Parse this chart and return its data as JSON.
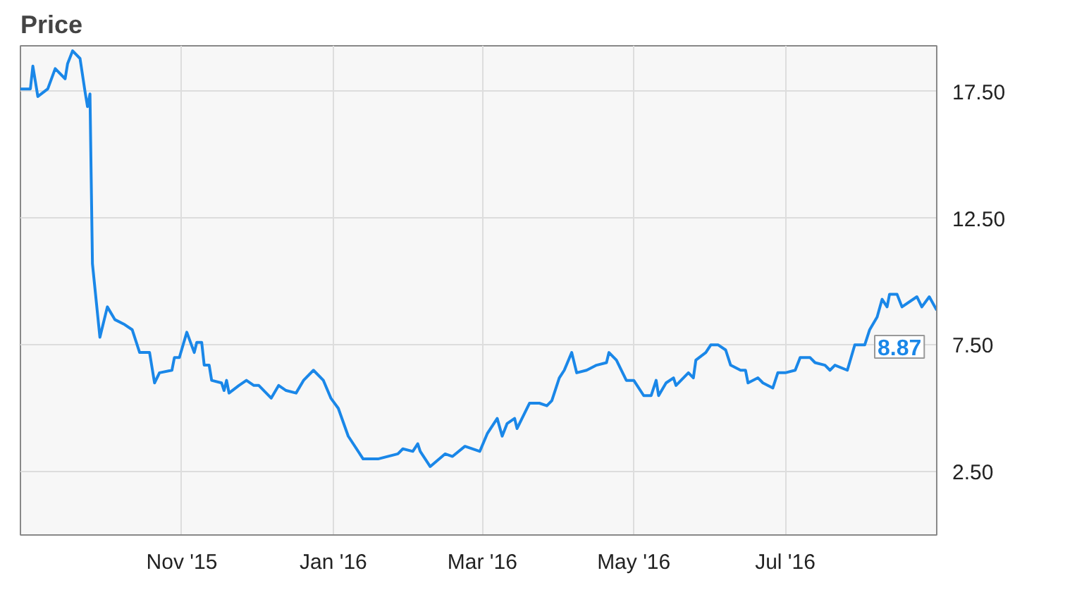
{
  "chart_data": {
    "type": "line",
    "title": "Price",
    "x": [
      "2015-08-28",
      "2015-09-01",
      "2015-09-02",
      "2015-09-04",
      "2015-09-08",
      "2015-09-11",
      "2015-09-15",
      "2015-09-16",
      "2015-09-18",
      "2015-09-21",
      "2015-09-23",
      "2015-09-24",
      "2015-09-25",
      "2015-09-26",
      "2015-09-29",
      "2015-10-02",
      "2015-10-05",
      "2015-10-09",
      "2015-10-12",
      "2015-10-15",
      "2015-10-19",
      "2015-10-21",
      "2015-10-23",
      "2015-10-28",
      "2015-10-29",
      "2015-10-31",
      "2015-11-03",
      "2015-11-06",
      "2015-11-07",
      "2015-11-09",
      "2015-11-10",
      "2015-11-12",
      "2015-11-13",
      "2015-11-17",
      "2015-11-18",
      "2015-11-19",
      "2015-11-20",
      "2015-11-24",
      "2015-11-27",
      "2015-11-30",
      "2015-12-02",
      "2015-12-07",
      "2015-12-10",
      "2015-12-13",
      "2015-12-17",
      "2015-12-20",
      "2015-12-24",
      "2015-12-28",
      "2015-12-31",
      "2016-01-03",
      "2016-01-07",
      "2016-01-13",
      "2016-01-19",
      "2016-01-27",
      "2016-01-29",
      "2016-02-02",
      "2016-02-04",
      "2016-02-05",
      "2016-02-09",
      "2016-02-15",
      "2016-02-18",
      "2016-02-23",
      "2016-02-29",
      "2016-03-03",
      "2016-03-07",
      "2016-03-09",
      "2016-03-11",
      "2016-03-14",
      "2016-03-15",
      "2016-03-20",
      "2016-03-24",
      "2016-03-27",
      "2016-03-29",
      "2016-04-01",
      "2016-04-03",
      "2016-04-06",
      "2016-04-08",
      "2016-04-12",
      "2016-04-16",
      "2016-04-20",
      "2016-04-21",
      "2016-04-24",
      "2016-04-28",
      "2016-05-01",
      "2016-05-05",
      "2016-05-08",
      "2016-05-10",
      "2016-05-11",
      "2016-05-14",
      "2016-05-17",
      "2016-05-18",
      "2016-05-23",
      "2016-05-25",
      "2016-05-26",
      "2016-05-30",
      "2016-06-01",
      "2016-06-04",
      "2016-06-07",
      "2016-06-09",
      "2016-06-13",
      "2016-06-15",
      "2016-06-16",
      "2016-06-20",
      "2016-06-22",
      "2016-06-26",
      "2016-06-28",
      "2016-07-01",
      "2016-07-05",
      "2016-07-07",
      "2016-07-11",
      "2016-07-13",
      "2016-07-17",
      "2016-07-19",
      "2016-07-21",
      "2016-07-26",
      "2016-07-29",
      "2016-08-02",
      "2016-08-04",
      "2016-08-07",
      "2016-08-09",
      "2016-08-11",
      "2016-08-12",
      "2016-08-15",
      "2016-08-17",
      "2016-08-23",
      "2016-08-25",
      "2016-08-28",
      "2016-08-31"
    ],
    "series": [
      {
        "color": "#1a87e8",
        "values": [
          17.6,
          17.6,
          18.5,
          17.3,
          17.6,
          18.4,
          18.0,
          18.6,
          19.1,
          18.8,
          17.5,
          16.9,
          17.4,
          10.7,
          7.8,
          9.0,
          8.5,
          8.3,
          8.1,
          7.2,
          7.2,
          6.0,
          6.4,
          6.5,
          7.0,
          7.0,
          8.0,
          7.2,
          7.6,
          7.6,
          6.7,
          6.7,
          6.1,
          6.0,
          5.7,
          6.1,
          5.6,
          5.9,
          6.1,
          5.9,
          5.9,
          5.4,
          5.9,
          5.7,
          5.6,
          6.1,
          6.5,
          6.1,
          5.4,
          5.0,
          3.9,
          3.0,
          3.0,
          3.2,
          3.4,
          3.3,
          3.6,
          3.3,
          2.7,
          3.2,
          3.1,
          3.5,
          3.3,
          4.0,
          4.6,
          3.9,
          4.4,
          4.6,
          4.2,
          5.2,
          5.2,
          5.1,
          5.3,
          6.2,
          6.5,
          7.2,
          6.4,
          6.5,
          6.7,
          6.8,
          7.2,
          6.9,
          6.1,
          6.1,
          5.5,
          5.5,
          6.1,
          5.5,
          6.0,
          6.2,
          5.9,
          6.4,
          6.2,
          6.9,
          7.2,
          7.5,
          7.5,
          7.3,
          6.7,
          6.5,
          6.5,
          6.0,
          6.2,
          6.0,
          5.8,
          6.4,
          6.4,
          6.5,
          7.0,
          7.0,
          6.8,
          6.7,
          6.5,
          6.7,
          6.5,
          7.5,
          7.5,
          8.1,
          8.6,
          9.3,
          9.0,
          9.5,
          9.5,
          9.0,
          9.4,
          9.0,
          9.4,
          8.87
        ],
        "value_labels": [
          null,
          null,
          null,
          null,
          null,
          null,
          null,
          null,
          null,
          null,
          null,
          null,
          null,
          null,
          null,
          null,
          null,
          null,
          null,
          null,
          null,
          null,
          null,
          null,
          null,
          null,
          null,
          null,
          null,
          null,
          null,
          null,
          null,
          null,
          null,
          null,
          null,
          null,
          null,
          null,
          null,
          null,
          null,
          null,
          null,
          null,
          null,
          null,
          null,
          null,
          null,
          null,
          null,
          null,
          null,
          null,
          null,
          null,
          null,
          null,
          null,
          null,
          null,
          null,
          null,
          null,
          null,
          null,
          null,
          null,
          null,
          null,
          null,
          null,
          null,
          null,
          null,
          null,
          null,
          null,
          null,
          null,
          null,
          null,
          null,
          null,
          null,
          null,
          null,
          null,
          null,
          null,
          null,
          null,
          null,
          null,
          null,
          null,
          null,
          null,
          null,
          null,
          null,
          null,
          null,
          null,
          null,
          null,
          null,
          null,
          null,
          null,
          null,
          null,
          null,
          null,
          null,
          null,
          null,
          null,
          null,
          null,
          null,
          null,
          null,
          null,
          null,
          "8.87"
        ]
      }
    ],
    "xlim": [
      "2015-08-28",
      "2016-08-31"
    ],
    "xticks": [
      {
        "value": "2015-11-01",
        "label": "Nov '15"
      },
      {
        "value": "2016-01-01",
        "label": "Jan '16"
      },
      {
        "value": "2016-03-01",
        "label": "Mar '16"
      },
      {
        "value": "2016-05-01",
        "label": "May '16"
      },
      {
        "value": "2016-07-01",
        "label": "Jul '16"
      }
    ],
    "ylim": [
      0,
      19.3
    ],
    "yticks": [
      {
        "value": 2.5,
        "label": "2.50"
      },
      {
        "value": 7.5,
        "label": "7.50"
      },
      {
        "value": 12.5,
        "label": "12.50"
      },
      {
        "value": 17.5,
        "label": "17.50"
      }
    ],
    "grid": true,
    "marker": "none",
    "line_style": "solid"
  }
}
